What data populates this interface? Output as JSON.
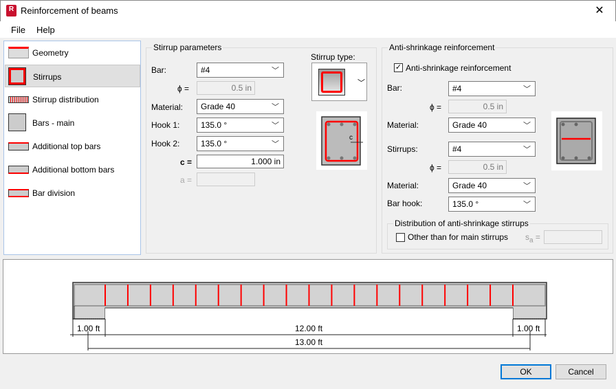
{
  "window": {
    "title": "Reinforcement of beams",
    "app_icon": "R",
    "close": "✕"
  },
  "menu": [
    "File",
    "Help"
  ],
  "nav": {
    "items": [
      {
        "label": "Geometry",
        "icon": "geometry-icon"
      },
      {
        "label": "Stirrups",
        "icon": "stirrups-icon",
        "selected": true
      },
      {
        "label": "Stirrup distribution",
        "icon": "stirrup-distribution-icon"
      },
      {
        "label": "Bars - main",
        "icon": "bars-main-icon"
      },
      {
        "label": "Additional top bars",
        "icon": "top-bars-icon"
      },
      {
        "label": "Additional bottom bars",
        "icon": "bottom-bars-icon"
      },
      {
        "label": "Bar division",
        "icon": "bar-division-icon"
      }
    ]
  },
  "stirrup": {
    "group": "Stirrup parameters",
    "bar_label": "Bar:",
    "bar": "#4",
    "phi_label": "ϕ =",
    "phi": "0.5 in",
    "material_label": "Material:",
    "material": "Grade 40",
    "hook1_label": "Hook 1:",
    "hook1": "135.0 °",
    "hook2_label": "Hook 2:",
    "hook2": "135.0 °",
    "c_label": "c =",
    "c": "1.000 in",
    "a_label": "a =",
    "a": "",
    "type_label": "Stirrup type:",
    "c_mark": "c"
  },
  "anti": {
    "group": "Anti-shrinkage reinforcement",
    "check_label": "Anti-shrinkage reinforcement",
    "checked": true,
    "bar_label": "Bar:",
    "bar": "#4",
    "phi_label": "ϕ =",
    "phi": "0.5 in",
    "material_label": "Material:",
    "material": "Grade 40",
    "stirrups_label": "Stirrups:",
    "stirrups": "#4",
    "phi2_label": "ϕ =",
    "phi2": "0.5 in",
    "material2_label": "Material:",
    "material2": "Grade 40",
    "hook_label": "Bar hook:",
    "hook": "135.0 °",
    "dist_group": "Distribution of anti-shrinkage stirrups",
    "other_label": "Other than for main stirrups",
    "other_checked": false,
    "sa_label": "s",
    "sa_sub": "a",
    "sa_eq": "=",
    "sa": ""
  },
  "beam": {
    "left_support": "1.00 ft",
    "span": "12.00 ft",
    "right_support": "1.00 ft",
    "total": "13.00 ft",
    "stirrup_color": "#ff0000"
  },
  "buttons": {
    "ok": "OK",
    "cancel": "Cancel"
  }
}
